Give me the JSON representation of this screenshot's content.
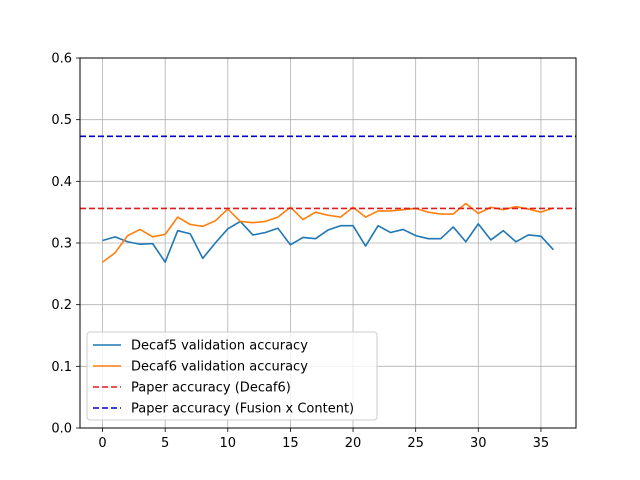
{
  "chart_data": {
    "type": "line",
    "title": "",
    "xlabel": "",
    "ylabel": "",
    "xlim": [
      -1.8,
      37.8
    ],
    "ylim": [
      0.0,
      0.6
    ],
    "x_ticks": [
      0,
      5,
      10,
      15,
      20,
      25,
      30,
      35
    ],
    "y_ticks": [
      0.0,
      0.1,
      0.2,
      0.3,
      0.4,
      0.5,
      0.6
    ],
    "x_tick_labels": [
      "0",
      "5",
      "10",
      "15",
      "20",
      "25",
      "30",
      "35"
    ],
    "y_tick_labels": [
      "0.0",
      "0.1",
      "0.2",
      "0.3",
      "0.4",
      "0.5",
      "0.6"
    ],
    "grid": true,
    "legend_position": "lower-left",
    "series": [
      {
        "name": "Decaf5 validation accuracy",
        "style": "solid",
        "color": "#1f77b4",
        "x": [
          0,
          1,
          2,
          3,
          4,
          5,
          6,
          7,
          8,
          9,
          10,
          11,
          12,
          13,
          14,
          15,
          16,
          17,
          18,
          19,
          20,
          21,
          22,
          23,
          24,
          25,
          26,
          27,
          28,
          29,
          30,
          31,
          32,
          33,
          34,
          35,
          36
        ],
        "values": [
          0.304,
          0.31,
          0.302,
          0.298,
          0.299,
          0.269,
          0.32,
          0.315,
          0.275,
          0.3,
          0.323,
          0.335,
          0.313,
          0.317,
          0.324,
          0.297,
          0.309,
          0.307,
          0.321,
          0.328,
          0.328,
          0.295,
          0.328,
          0.317,
          0.322,
          0.312,
          0.307,
          0.307,
          0.326,
          0.302,
          0.331,
          0.305,
          0.32,
          0.302,
          0.313,
          0.311,
          0.289
        ]
      },
      {
        "name": "Decaf6 validation accuracy",
        "style": "solid",
        "color": "#ff7f0e",
        "x": [
          0,
          1,
          2,
          3,
          4,
          5,
          6,
          7,
          8,
          9,
          10,
          11,
          12,
          13,
          14,
          15,
          16,
          17,
          18,
          19,
          20,
          21,
          22,
          23,
          24,
          25,
          26,
          27,
          28,
          29,
          30,
          31,
          32,
          33,
          34,
          35,
          36
        ],
        "values": [
          0.269,
          0.284,
          0.312,
          0.322,
          0.31,
          0.314,
          0.342,
          0.33,
          0.327,
          0.336,
          0.355,
          0.335,
          0.333,
          0.335,
          0.342,
          0.358,
          0.338,
          0.35,
          0.345,
          0.342,
          0.358,
          0.342,
          0.352,
          0.352,
          0.354,
          0.356,
          0.35,
          0.347,
          0.347,
          0.364,
          0.348,
          0.358,
          0.354,
          0.359,
          0.355,
          0.35,
          0.357
        ]
      },
      {
        "name": "Paper accuracy (Decaf6)",
        "style": "dashed",
        "color": "#e31a1c",
        "x": [
          -1.8,
          37.8
        ],
        "values": [
          0.356,
          0.356
        ]
      },
      {
        "name": "Paper accuracy (Fusion x Content)",
        "style": "dashed",
        "color": "#0000cc",
        "x": [
          -1.8,
          37.8
        ],
        "values": [
          0.473,
          0.473
        ]
      }
    ]
  }
}
